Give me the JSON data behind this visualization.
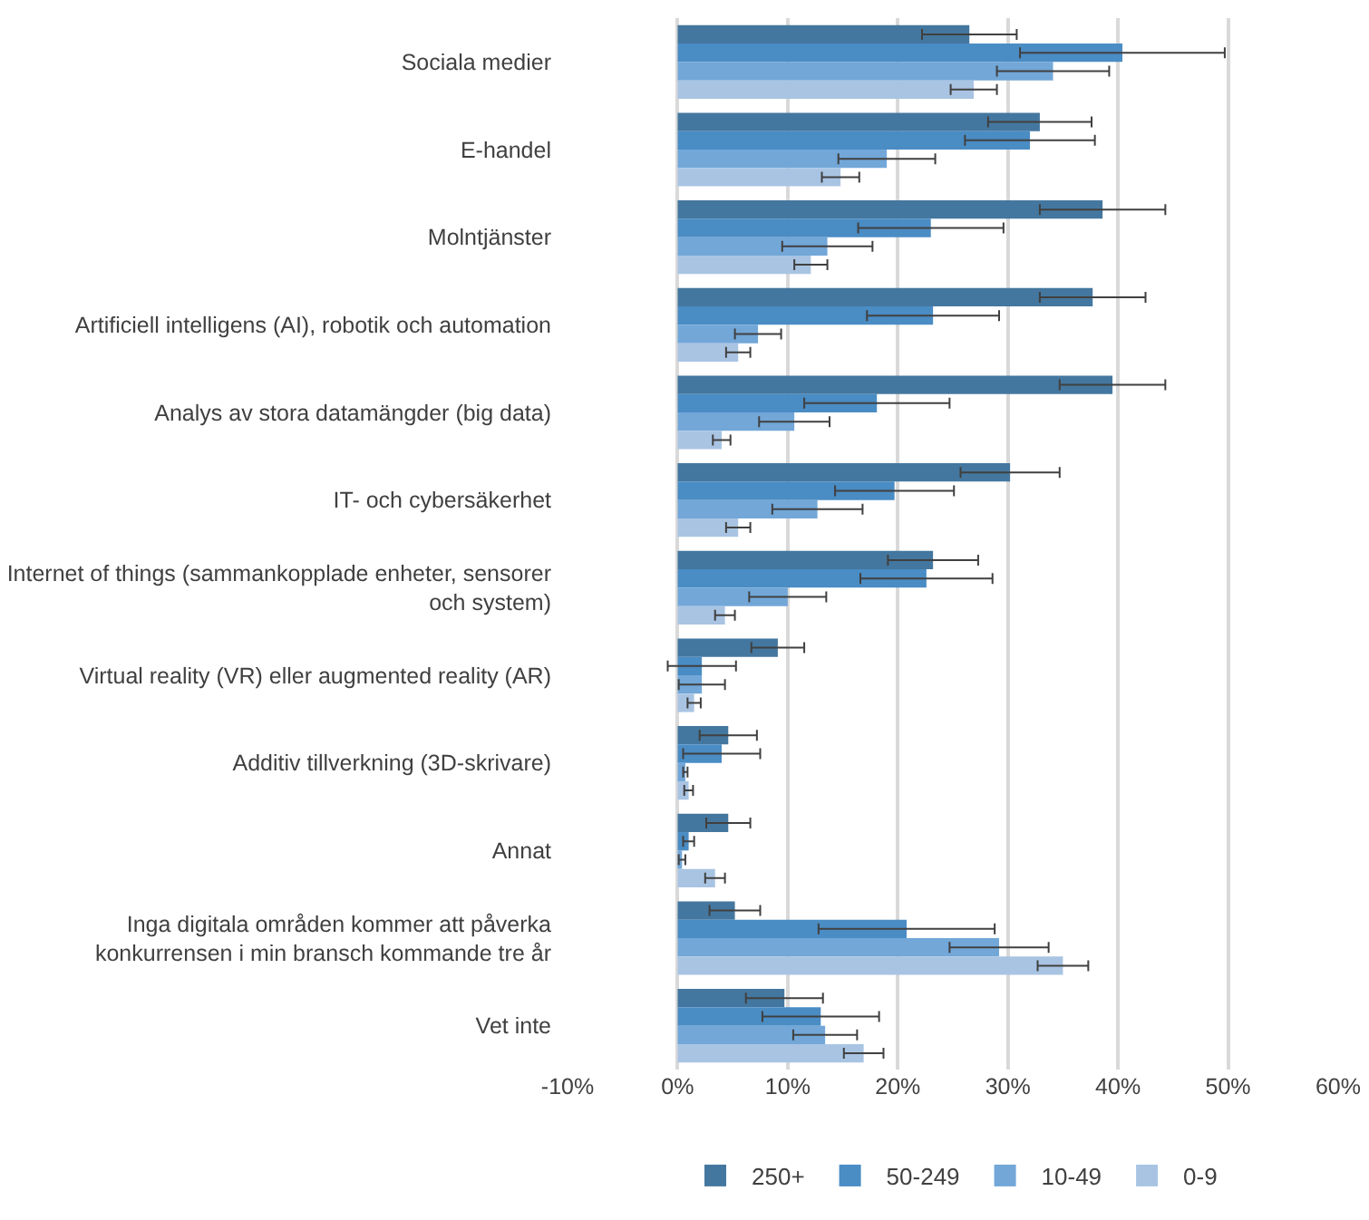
{
  "chart_data": {
    "type": "bar",
    "orientation": "horizontal",
    "categories": [
      "Sociala medier",
      "E-handel",
      "Molntjänster",
      "Artificiell intelligens (AI), robotik och automation",
      "Analys av stora datamängder (big data)",
      "IT- och cybersäkerhet",
      "Internet of things (sammankopplade enheter, sensorer och system)",
      "Virtual reality (VR) eller augmented reality (AR)",
      "Additiv tillverkning (3D-skrivare)",
      "Annat",
      "Inga digitala områden kommer att påverka konkurrensen i min bransch kommande tre år",
      "Vet inte"
    ],
    "series": [
      {
        "name": "250+",
        "color": "#44779f",
        "values": [
          26.5,
          32.9,
          38.6,
          37.7,
          39.5,
          30.2,
          23.2,
          9.1,
          4.6,
          4.6,
          5.2,
          9.7
        ],
        "errors": [
          4.3,
          4.7,
          5.7,
          4.8,
          4.8,
          4.5,
          4.1,
          2.4,
          2.6,
          2.0,
          2.3,
          3.5
        ]
      },
      {
        "name": "50-249",
        "color": "#4a8cc4",
        "values": [
          40.4,
          32.0,
          23.0,
          23.2,
          18.1,
          19.7,
          22.6,
          2.2,
          4.0,
          1.0,
          20.8,
          13.0
        ],
        "errors": [
          9.3,
          5.9,
          6.6,
          6.0,
          6.6,
          5.4,
          6.0,
          3.1,
          3.5,
          0.5,
          8.0,
          5.3
        ]
      },
      {
        "name": "10-49",
        "color": "#72a7d8",
        "values": [
          34.1,
          19.0,
          13.6,
          7.3,
          10.6,
          12.7,
          10.0,
          2.2,
          0.7,
          0.4,
          29.2,
          13.4
        ],
        "errors": [
          5.1,
          4.4,
          4.1,
          2.1,
          3.2,
          4.1,
          3.5,
          2.1,
          0.2,
          0.3,
          4.5,
          2.9
        ]
      },
      {
        "name": "0-9",
        "color": "#a9c4e3",
        "values": [
          26.9,
          14.8,
          12.1,
          5.5,
          4.0,
          5.5,
          4.3,
          1.5,
          1.0,
          3.4,
          35.0,
          16.9
        ],
        "errors": [
          2.1,
          1.7,
          1.5,
          1.1,
          0.8,
          1.1,
          0.9,
          0.6,
          0.4,
          0.9,
          2.3,
          1.8
        ]
      }
    ],
    "xlim": [
      -10,
      60
    ],
    "xticks": [
      {
        "value": -10,
        "label": "-10%"
      },
      {
        "value": 0,
        "label": "0%"
      },
      {
        "value": 10,
        "label": "10%"
      },
      {
        "value": 20,
        "label": "20%"
      },
      {
        "value": 30,
        "label": "30%"
      },
      {
        "value": 40,
        "label": "40%"
      },
      {
        "value": 50,
        "label": "50%"
      },
      {
        "value": 60,
        "label": "60%"
      }
    ],
    "grid": "x",
    "legend": "bottom"
  }
}
